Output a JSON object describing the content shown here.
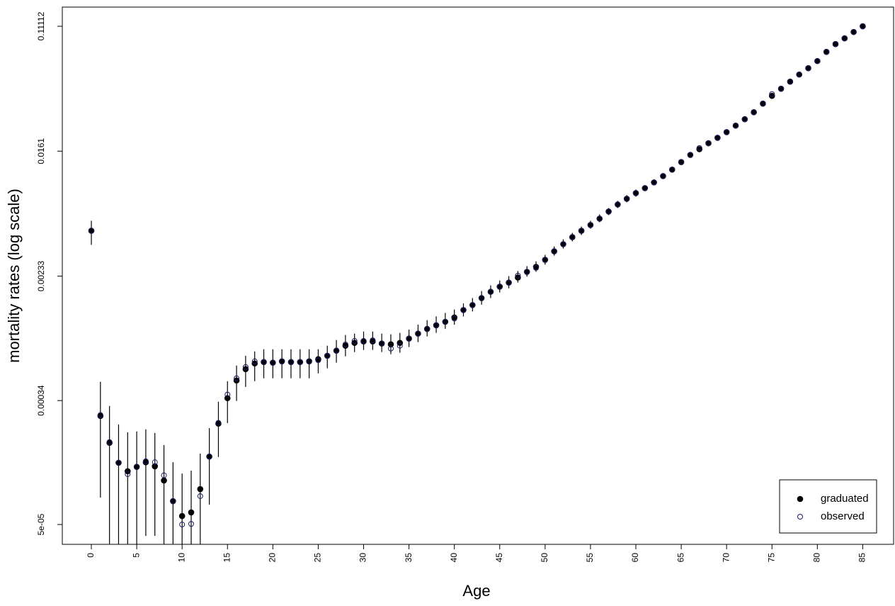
{
  "chart_data": {
    "type": "scatter",
    "xlabel": "Age",
    "ylabel": "mortality rates (log scale)",
    "log_y": true,
    "legend": "bottomright",
    "xlim": [
      -3.2,
      88.4
    ],
    "ylim": [
      3.68e-05,
      0.1495
    ],
    "xticks": [
      0,
      5,
      10,
      15,
      20,
      25,
      30,
      35,
      40,
      45,
      50,
      55,
      60,
      65,
      70,
      75,
      80,
      85
    ],
    "yticks": [
      {
        "value": 5e-05,
        "label": "5e-05"
      },
      0.00034,
      0.00233,
      0.0161,
      0.11112
    ],
    "x": [
      0,
      1,
      2,
      3,
      4,
      5,
      6,
      7,
      8,
      9,
      10,
      11,
      12,
      13,
      14,
      15,
      16,
      17,
      18,
      19,
      20,
      21,
      22,
      23,
      24,
      25,
      26,
      27,
      28,
      29,
      30,
      31,
      32,
      33,
      34,
      35,
      36,
      37,
      38,
      39,
      40,
      41,
      42,
      43,
      44,
      45,
      46,
      47,
      48,
      49,
      50,
      51,
      52,
      53,
      54,
      55,
      56,
      57,
      58,
      59,
      60,
      61,
      62,
      63,
      64,
      65,
      66,
      67,
      68,
      69,
      70,
      71,
      72,
      73,
      74,
      75,
      76,
      77,
      78,
      79,
      80,
      81,
      82,
      83,
      84,
      85
    ],
    "series": [
      {
        "name": "graduated",
        "color": "#000000",
        "marker": "filled",
        "values": [
          0.0047,
          0.000268,
          0.000177,
          0.00013,
          0.000114,
          0.000122,
          0.000131,
          0.000123,
          9.88e-05,
          7.18e-05,
          5.7e-05,
          6.03e-05,
          8.65e-05,
          0.000143,
          0.000238,
          0.000353,
          0.000464,
          0.000553,
          0.000604,
          0.000617,
          0.000611,
          0.000624,
          0.000617,
          0.000617,
          0.000624,
          0.000645,
          0.00068,
          0.000736,
          0.000795,
          0.00083,
          0.000849,
          0.000849,
          0.000822,
          0.000812,
          0.00083,
          0.000887,
          0.000958,
          0.00103,
          0.00109,
          0.00115,
          0.00123,
          0.00138,
          0.00149,
          0.00166,
          0.00183,
          0.00198,
          0.00211,
          0.00228,
          0.00249,
          0.00269,
          0.003,
          0.00342,
          0.00382,
          0.00426,
          0.0047,
          0.00514,
          0.00567,
          0.00633,
          0.00706,
          0.00771,
          0.00842,
          0.00909,
          0.00993,
          0.01095,
          0.0121,
          0.0136,
          0.0152,
          0.0166,
          0.0182,
          0.0198,
          0.0216,
          0.0239,
          0.0264,
          0.0294,
          0.0336,
          0.0379,
          0.0423,
          0.0472,
          0.0527,
          0.0581,
          0.0649,
          0.0748,
          0.0844,
          0.0922,
          0.1017,
          0.11112
        ],
        "upper": [
          0.00549,
          0.000454,
          0.000313,
          0.000235,
          0.000208,
          0.000211,
          0.000218,
          0.000206,
          0.000171,
          0.000131,
          0.00011,
          0.000115,
          0.00015,
          0.000222,
          0.000334,
          0.000459,
          0.000585,
          0.00068,
          0.000728,
          0.000752,
          0.000752,
          0.000752,
          0.000752,
          0.000752,
          0.000752,
          0.000752,
          0.000795,
          0.000868,
          0.000937,
          0.000958,
          0.00099,
          0.00099,
          0.000958,
          0.000948,
          0.000969,
          0.00102,
          0.0011,
          0.00118,
          0.00125,
          0.00132,
          0.00139,
          0.00153,
          0.00166,
          0.00185,
          0.00202,
          0.00218,
          0.00233,
          0.00252,
          0.00272,
          0.00293,
          0.00324,
          0.00369,
          0.00412,
          0.00455,
          0.00502,
          0.00549,
          0.00605,
          0.00668,
          0.00746,
          0.00815,
          0.00889,
          0.0095,
          0.0104,
          0.01144,
          0.01264,
          0.01421,
          0.01588,
          0.01735,
          0.01902,
          0.02069,
          0.02257,
          0.02497,
          0.02759,
          0.03072,
          0.03511,
          0.0396,
          0.0442,
          0.04932,
          0.05507,
          0.06071,
          0.06782,
          0.07817,
          0.0882,
          0.09635,
          0.1063,
          0.1161
        ],
        "lower": [
          0.00378,
          7.59e-05,
          0,
          0,
          0,
          0,
          4.19e-05,
          4.19e-05,
          0,
          0,
          0,
          0,
          0,
          6.8e-05,
          0.000142,
          0.00024,
          0.000338,
          0.00042,
          0.000459,
          0.00048,
          0.00048,
          0.00048,
          0.00048,
          0.00048,
          0.00048,
          0.000518,
          0.00056,
          0.000611,
          0.000674,
          0.00072,
          0.000744,
          0.000744,
          0.00072,
          0.000697,
          0.000713,
          0.000778,
          0.00084,
          0.000917,
          0.000969,
          0.00103,
          0.0011,
          0.00125,
          0.00135,
          0.0015,
          0.00166,
          0.00181,
          0.00193,
          0.00211,
          0.00231,
          0.00249,
          0.00278,
          0.0032,
          0.00357,
          0.00399,
          0.0044,
          0.00486,
          0.00537,
          0.00599,
          0.00668,
          0.0073,
          0.00797,
          0.0087,
          0.0095,
          0.01048,
          0.01158,
          0.01301,
          0.01455,
          0.01589,
          0.01742,
          0.01895,
          0.02067,
          0.02287,
          0.02526,
          0.02813,
          0.03215,
          0.03627,
          0.04048,
          0.04517,
          0.05043,
          0.0556,
          0.06211,
          0.07158,
          0.08077,
          0.08823,
          0.09732,
          0.1063
        ]
      },
      {
        "name": "observed",
        "color": "#1a1a66",
        "marker": "open",
        "values": [
          0.0047,
          0.000272,
          0.000179,
          0.00013,
          0.000109,
          0.000122,
          0.000133,
          0.000131,
          0.000107,
          7.18e-05,
          5e-05,
          5.05e-05,
          7.76e-05,
          0.000143,
          0.000241,
          0.000373,
          0.00048,
          0.000571,
          0.000624,
          0.000617,
          0.000611,
          0.000624,
          0.000617,
          0.000617,
          0.000624,
          0.000634,
          0.00068,
          0.000736,
          0.00081,
          0.000856,
          0.000856,
          0.000864,
          0.000822,
          0.00076,
          0.000795,
          0.000887,
          0.000958,
          0.00103,
          0.00109,
          0.00115,
          0.00121,
          0.00138,
          0.00149,
          0.00166,
          0.00183,
          0.00198,
          0.00211,
          0.00235,
          0.00249,
          0.00265,
          0.003,
          0.00342,
          0.00382,
          0.00426,
          0.0047,
          0.00514,
          0.00567,
          0.00633,
          0.00706,
          0.00771,
          0.00842,
          0.00909,
          0.00993,
          0.01095,
          0.0121,
          0.0136,
          0.0152,
          0.0169,
          0.0182,
          0.0198,
          0.0216,
          0.0239,
          0.0264,
          0.0294,
          0.0336,
          0.0389,
          0.0423,
          0.0472,
          0.0527,
          0.0581,
          0.0649,
          0.0748,
          0.0844,
          0.0922,
          0.1017,
          0.11112
        ]
      }
    ]
  }
}
